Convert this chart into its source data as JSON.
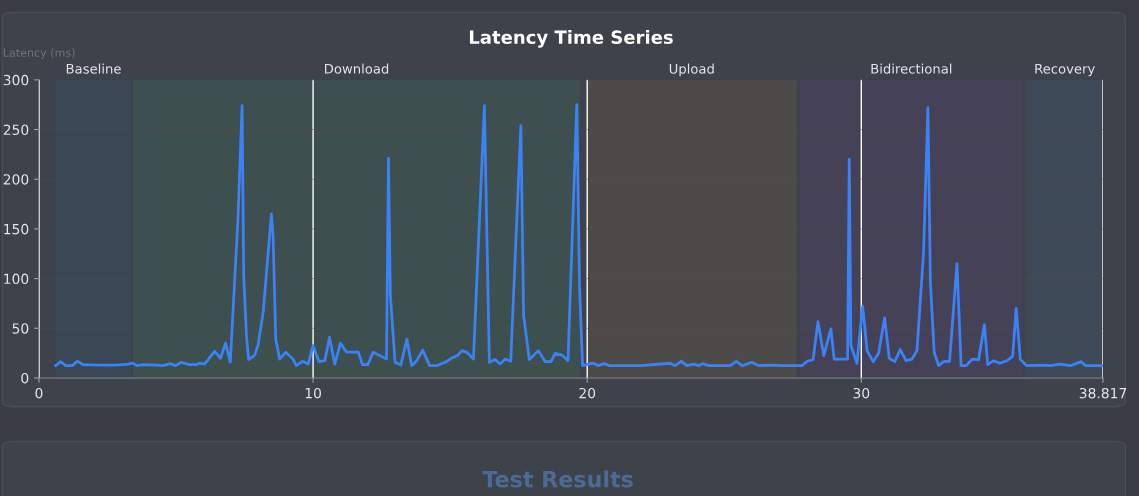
{
  "chart_data": {
    "type": "line",
    "title": "Latency Time Series",
    "ylabel": "Latency (ms)",
    "x": [
      0.61,
      0.79,
      0.97,
      1.22,
      1.4,
      1.61,
      2.21,
      2.82,
      3.25,
      3.41,
      3.58,
      3.8,
      4.28,
      4.53,
      4.79,
      4.99,
      5.19,
      5.47,
      5.74,
      5.86,
      6.05,
      6.17,
      6.41,
      6.62,
      6.81,
      6.98,
      7.26,
      7.41,
      7.47,
      7.57,
      7.65,
      7.87,
      7.99,
      8.18,
      8.48,
      8.54,
      8.64,
      8.78,
      9.0,
      9.27,
      9.39,
      9.61,
      9.82,
      10.0,
      10.22,
      10.43,
      10.6,
      10.79,
      11.0,
      11.22,
      11.65,
      11.8,
      12.0,
      12.19,
      12.68,
      12.75,
      12.82,
      12.99,
      13.2,
      13.42,
      13.6,
      13.78,
      14.0,
      14.25,
      14.51,
      14.82,
      15.06,
      15.27,
      15.43,
      15.61,
      15.85,
      16.25,
      16.43,
      16.64,
      16.82,
      17.01,
      17.21,
      17.58,
      17.68,
      17.89,
      18.22,
      18.47,
      18.68,
      18.83,
      19.08,
      19.3,
      19.62,
      19.72,
      19.83,
      20.21,
      20.41,
      20.62,
      20.81,
      21.93,
      23.03,
      23.21,
      23.43,
      23.64,
      23.88,
      24.06,
      24.22,
      24.43,
      25.22,
      25.44,
      25.65,
      26.01,
      26.25,
      26.8,
      27.16,
      27.84,
      28.02,
      28.24,
      28.42,
      28.63,
      28.89,
      29.01,
      29.5,
      29.56,
      29.62,
      29.84,
      30.05,
      30.21,
      30.43,
      30.63,
      30.85,
      31.02,
      31.22,
      31.42,
      31.63,
      31.85,
      32.03,
      32.27,
      32.43,
      32.52,
      32.66,
      32.82,
      33.0,
      33.22,
      33.49,
      33.64,
      33.83,
      34.04,
      34.28,
      34.49,
      34.61,
      34.83,
      35.05,
      35.32,
      35.52,
      35.65,
      35.8,
      36.02,
      36.65,
      36.9,
      37.26,
      37.63,
      38.03,
      38.18,
      38.8
    ],
    "series": [
      {
        "color": "#3b82f6",
        "values": [
          12.4,
          16.4,
          12.4,
          12.4,
          17,
          13.4,
          13,
          12.8,
          14,
          15,
          12.4,
          13.4,
          13,
          12.4,
          14.4,
          12.4,
          15.8,
          13.4,
          13.4,
          14.8,
          14,
          18.5,
          26.8,
          19.8,
          35,
          15.8,
          160,
          274,
          103,
          42.6,
          18.5,
          23,
          32.6,
          66,
          165,
          143,
          39,
          19,
          25.8,
          19,
          12.4,
          16.8,
          14,
          32.6,
          16.4,
          17.4,
          41,
          14,
          35,
          26,
          26,
          13.4,
          13.4,
          26,
          19,
          221,
          83,
          15.8,
          13,
          39,
          12.4,
          17.4,
          28,
          12.4,
          12.4,
          15.8,
          20,
          22.5,
          27.5,
          25.8,
          19,
          274,
          15.8,
          18.5,
          14,
          19,
          16.8,
          254,
          63,
          18.5,
          27.5,
          16.4,
          16.4,
          24.8,
          23,
          17.4,
          275,
          93,
          12.4,
          15,
          12.4,
          14.4,
          12.4,
          12.4,
          14.8,
          12.4,
          16.8,
          12.4,
          14,
          12.4,
          14.4,
          12.4,
          12.4,
          16.8,
          12.4,
          15.8,
          12.4,
          13,
          12.4,
          12.4,
          16.8,
          18.5,
          56.7,
          22.5,
          49.3,
          19,
          19,
          220,
          32.6,
          14.8,
          72,
          27.5,
          16.4,
          24.8,
          60.4,
          19.8,
          16.4,
          28.5,
          17.4,
          19,
          27.5,
          126,
          272,
          96,
          25.8,
          12.4,
          16.4,
          16.8,
          115,
          12.4,
          12.4,
          19,
          18.5,
          53.7,
          13.4,
          17.4,
          14.8,
          17.4,
          21.8,
          70,
          19,
          12.4,
          13,
          12.4,
          14,
          12.4,
          16.4,
          12.4,
          12.4
        ]
      }
    ],
    "xlim": [
      0,
      38.817
    ],
    "xticks": [
      0,
      10,
      20,
      30,
      38.817
    ],
    "ylim": [
      0,
      300
    ],
    "yticks": [
      0,
      50,
      100,
      150,
      200,
      250,
      300
    ],
    "grid": true,
    "marker": "none",
    "line_style": "solid",
    "bands": [
      {
        "axis": "x",
        "from": 0.62,
        "to": 3.36,
        "label": "Baseline",
        "color": "#3a4856"
      },
      {
        "axis": "x",
        "from": 3.43,
        "to": 19.74,
        "label": "Download",
        "color": "#3d4f4e"
      },
      {
        "axis": "x",
        "from": 20.0,
        "to": 27.63,
        "label": "Upload",
        "color": "#4c4b48"
      },
      {
        "axis": "x",
        "from": 27.77,
        "to": 35.88,
        "label": "Bidirectional",
        "color": "#454157"
      },
      {
        "axis": "x",
        "from": 36.02,
        "to": 38.817,
        "label": "Recovery",
        "color": "#3e4a57"
      }
    ],
    "annotations": [
      "Test Results"
    ]
  }
}
